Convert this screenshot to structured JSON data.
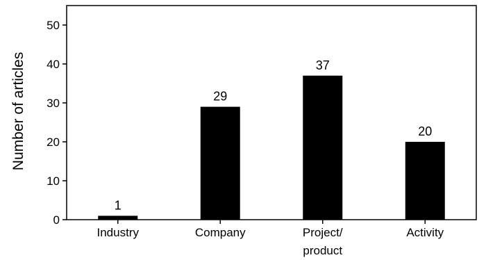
{
  "chart_data": {
    "type": "bar",
    "categories": [
      "Industry",
      "Company",
      "Project/ product",
      "Activity"
    ],
    "category_lines": [
      [
        "Industry"
      ],
      [
        "Company"
      ],
      [
        "Project/",
        "product"
      ],
      [
        "Activity"
      ]
    ],
    "values": [
      1,
      29,
      37,
      20
    ],
    "data_labels": [
      "1",
      "29",
      "37",
      "20"
    ],
    "ylabel": "Number of articles",
    "xlabel": "",
    "ylim": [
      0,
      55
    ],
    "yticks": [
      0,
      10,
      20,
      30,
      40,
      50
    ],
    "grid": false,
    "bar_color": "#000000"
  }
}
